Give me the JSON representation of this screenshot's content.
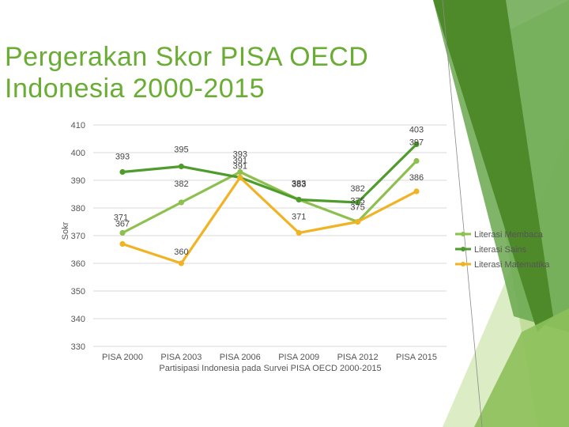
{
  "title": {
    "line1": "Pergerakan Skor PISA OECD",
    "line2": "Indonesia 2000-2015"
  },
  "colors": {
    "title": "#69ad34",
    "decor_dark": "#4e8a2a",
    "decor_mid": "#6aa84f",
    "decor_light": "#b9d88f",
    "decor_pale": "#dcecc4"
  },
  "chart_data": {
    "type": "line",
    "title": "",
    "xlabel": "Partisipasi Indonesia pada Survei PISA OECD 2000-2015",
    "ylabel": "Sokr",
    "ylim": [
      330,
      410
    ],
    "yticks": [
      "330",
      "340",
      "350",
      "360",
      "370",
      "380",
      "390",
      "400",
      "410"
    ],
    "categories": [
      "PISA 2000",
      "PISA 2003",
      "PISA 2006",
      "PISA 2009",
      "PISA 2012",
      "PISA 2015"
    ],
    "grid": "horizontal",
    "legend_position": "right",
    "series": [
      {
        "name": "Literasi Membaca",
        "color": "#8dc04f",
        "values": [
          371,
          382,
          393,
          383,
          375,
          397
        ],
        "labels": [
          "371",
          "382",
          "393",
          "383",
          "375",
          "397"
        ]
      },
      {
        "name": "Literasi Sains",
        "color": "#4f9c2d",
        "values": [
          393,
          395,
          391,
          383,
          382,
          403
        ],
        "labels": [
          "393",
          "395",
          "391",
          "383",
          "382",
          "403"
        ]
      },
      {
        "name": "Literasi Matematika",
        "color": "#f0b323",
        "values": [
          367,
          360,
          391,
          371,
          375,
          386
        ],
        "labels": [
          "367",
          "360",
          "391",
          "371",
          "375",
          "386"
        ]
      }
    ]
  }
}
